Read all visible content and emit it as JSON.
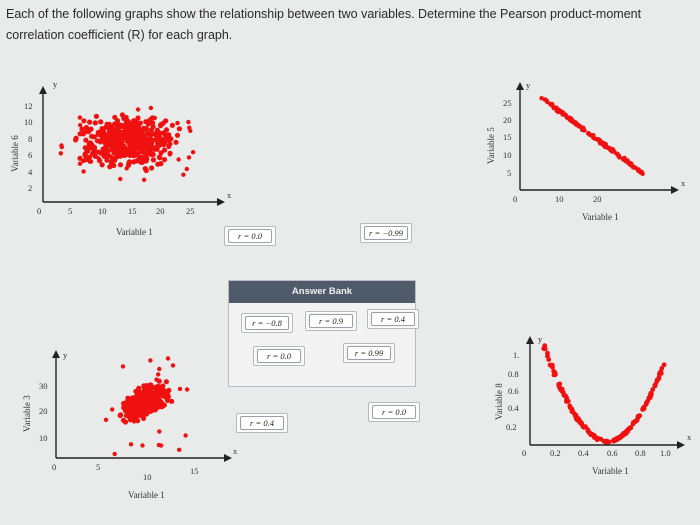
{
  "instructions": "Each of the following graphs show the relationship between two variables. Determine the Pearson product-moment correlation coefficient (R) for each graph.",
  "graph_tl": {
    "ylabel": "Variable 6",
    "xlabel": "Variable 1",
    "yticks": [
      "12",
      "10",
      "8",
      "6",
      "4",
      "2"
    ],
    "xticks": [
      "5",
      "10",
      "15",
      "20",
      "25"
    ],
    "origin": "0",
    "xaxis": "x",
    "yaxis": "y"
  },
  "graph_tr": {
    "ylabel": "Variable 5",
    "xlabel": "Variable 1",
    "yticks": [
      "25",
      "20",
      "15",
      "10",
      "5"
    ],
    "xticks": [
      "10",
      "20"
    ],
    "origin": "0",
    "xaxis": "x",
    "yaxis": "y"
  },
  "graph_bl": {
    "ylabel": "Variable 3",
    "xlabel": "Variable 1",
    "yticks": [
      "30",
      "20",
      "10"
    ],
    "xticks": [
      "5",
      "10",
      "15"
    ],
    "origin": "0",
    "xaxis": "x",
    "yaxis": "y"
  },
  "graph_br": {
    "ylabel": "Variable 8",
    "xlabel": "Variable 1",
    "yticks": [
      "1.",
      "0.8",
      "0.6",
      "0.4",
      "0.2"
    ],
    "xticks": [
      "0.2",
      "0.4",
      "0.6",
      "0.8",
      "1.0"
    ],
    "origin": "0",
    "xaxis": "x",
    "yaxis": "y"
  },
  "drop_targets": {
    "top_left": "r = 0.0",
    "top_right": "r = −0.99",
    "bottom_left": "r = 0.4",
    "bottom_right": "r = 0.0"
  },
  "answer_bank": {
    "title": "Answer Bank",
    "items": [
      "r = −0.8",
      "r = 0.9",
      "r = 0.4",
      "r = 0.0",
      "r = 0.99"
    ]
  }
}
